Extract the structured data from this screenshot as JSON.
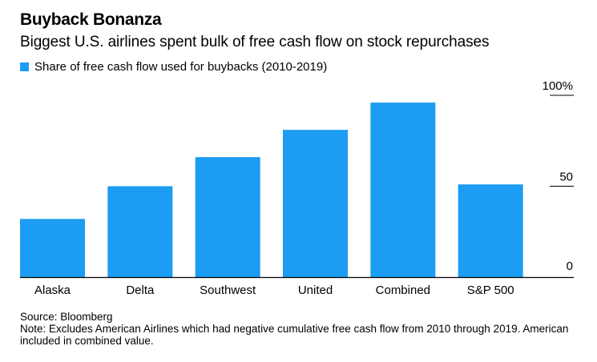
{
  "chart_data": {
    "type": "bar",
    "title": "Buyback Bonanza",
    "subtitle": "Biggest U.S. airlines spent bulk of free cash flow on stock repurchases",
    "legend": [
      "Share of free cash flow used for buybacks (2010-2019)"
    ],
    "categories": [
      "Alaska",
      "Delta",
      "Southwest",
      "United",
      "Combined",
      "S&P 500"
    ],
    "values": [
      32,
      50,
      66,
      81,
      96,
      51
    ],
    "y_ticks": [
      0,
      50,
      100
    ],
    "y_tick_labels": [
      "0",
      "50",
      "100%"
    ],
    "ylim": [
      0,
      100
    ],
    "xlabel": "",
    "ylabel": "",
    "color": "#1c9cf2",
    "axis_color": "#000000"
  },
  "footer": {
    "source": "Source: Bloomberg",
    "note": "Note: Excludes American Airlines which had negative cumulative free cash flow from 2010 through 2019. American included in combined value."
  }
}
